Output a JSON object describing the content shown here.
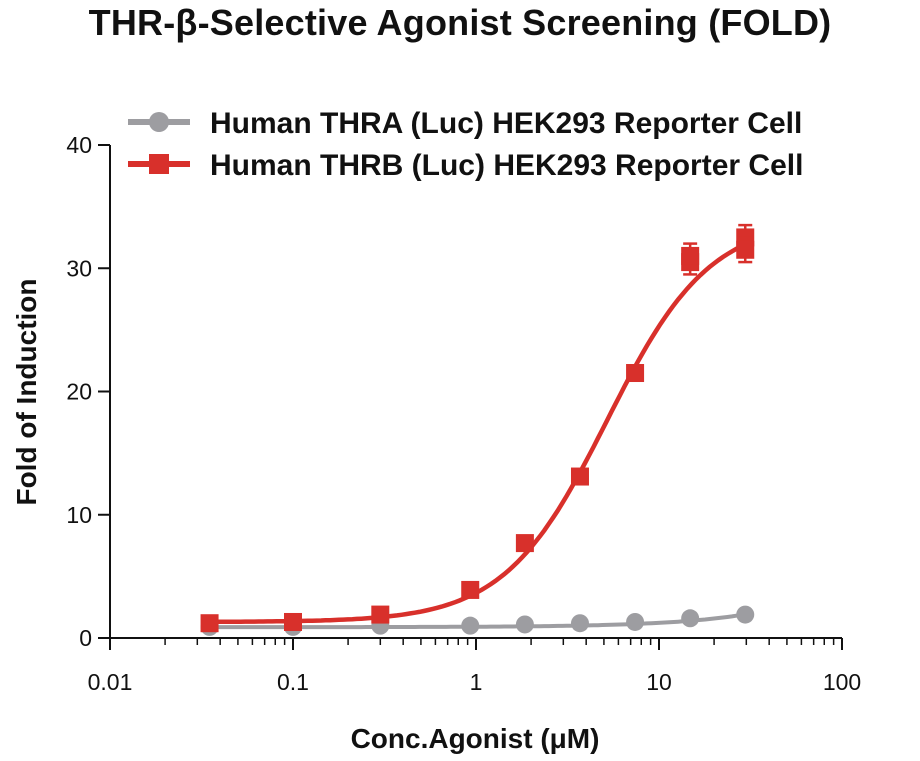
{
  "chart_data": {
    "type": "scatter",
    "title": "THR-β-Selective Agonist Screening (FOLD)",
    "xlabel": "Conc.Agonist (μM)",
    "ylabel": "Fold of Induction",
    "xscale": "log",
    "xlim": [
      0.01,
      100
    ],
    "ylim": [
      0,
      40
    ],
    "x_ticks": [
      "0.01",
      "0.1",
      "1",
      "10",
      "100"
    ],
    "y_ticks": [
      "0",
      "10",
      "20",
      "30",
      "40"
    ],
    "legend_position": "top",
    "grid": false,
    "series": [
      {
        "name": "Human THRA (Luc) HEK293 Reporter Cell",
        "color": "#9d9da1",
        "marker": "circle",
        "x": [
          0.035,
          0.1,
          0.3,
          0.93,
          1.85,
          3.7,
          7.4,
          14.8,
          29.6
        ],
        "y": [
          0.9,
          0.9,
          1.0,
          1.0,
          1.1,
          1.2,
          1.3,
          1.6,
          1.9
        ],
        "error": [
          0.1,
          0.1,
          0.1,
          0.1,
          0.1,
          0.1,
          0.1,
          0.15,
          0.2
        ]
      },
      {
        "name": "Human THRB (Luc) HEK293 Reporter Cell",
        "color": "#d8302b",
        "marker": "square",
        "x": [
          0.035,
          0.1,
          0.3,
          0.93,
          1.85,
          3.7,
          7.4,
          14.8,
          29.6
        ],
        "y": [
          1.2,
          1.3,
          1.9,
          3.9,
          7.7,
          13.1,
          21.5,
          30.5,
          32.5
        ],
        "y_replicate": [
          null,
          null,
          null,
          null,
          null,
          null,
          null,
          31.0,
          31.5
        ],
        "error": [
          0.3,
          0.3,
          0.3,
          0.4,
          0.5,
          0.5,
          0.6,
          1.0,
          1.0
        ]
      }
    ]
  }
}
